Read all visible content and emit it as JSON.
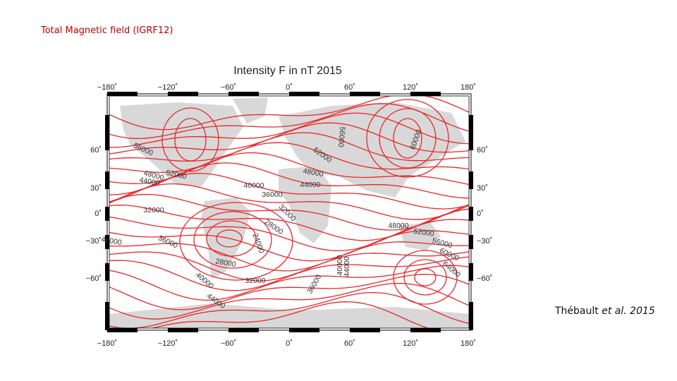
{
  "header": {
    "title": "Total Magnetic field (IGRF12)"
  },
  "figure": {
    "title": "Intensity F in nT 2015",
    "x_ticks": [
      "−180˚",
      "−120˚",
      "−60˚",
      "0˚",
      "60˚",
      "120˚",
      "180˚"
    ],
    "y_ticks": [
      "60˚",
      "30˚",
      "0˚",
      "−30˚",
      "−60˚"
    ],
    "contour_labels": [
      "56000",
      "48000",
      "52000",
      "44000",
      "32000",
      "48000",
      "36000",
      "40000",
      "36000",
      "32000",
      "28000",
      "24000",
      "28000",
      "32000",
      "40000",
      "44000",
      "36000",
      "40000",
      "44000",
      "56000",
      "60000",
      "52000",
      "48000",
      "44000",
      "48000",
      "52000",
      "56000",
      "60000",
      "64000"
    ]
  },
  "caption": {
    "author": "Thébault",
    "etal": "et al.",
    "year": "2015"
  }
}
